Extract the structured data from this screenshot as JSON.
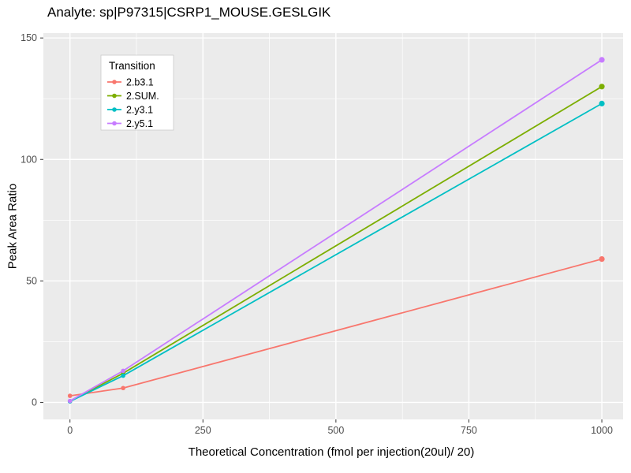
{
  "chart_data": {
    "type": "line",
    "title": "Analyte: sp|P97315|CSRP1_MOUSE.GESLGIK",
    "xlabel": "Theoretical Concentration (fmol per injection(20ul)/ 20)",
    "ylabel": "Peak Area Ratio",
    "legend_title": "Transition",
    "legend_position": "top-left-inside",
    "x": [
      0,
      100,
      1000
    ],
    "series": [
      {
        "name": "2.b3.1",
        "color": "#F8766D",
        "values": [
          2.7,
          5.9,
          59
        ]
      },
      {
        "name": "2.SUM.",
        "color": "#7CAE00",
        "values": [
          0.5,
          12,
          130
        ]
      },
      {
        "name": "2.y3.1",
        "color": "#00BFC4",
        "values": [
          0.4,
          11,
          123
        ]
      },
      {
        "name": "2.y5.1",
        "color": "#C77CFF",
        "values": [
          0.6,
          13,
          141
        ]
      }
    ],
    "x_ticks": [
      0,
      250,
      500,
      750,
      1000
    ],
    "y_ticks": [
      0,
      50,
      100,
      150
    ],
    "x_minor_ticks": [
      125,
      375,
      625,
      875
    ],
    "y_minor_ticks": [
      25,
      75,
      125
    ],
    "xlim": [
      -50,
      1040
    ],
    "ylim": [
      -7,
      152
    ],
    "grid": true,
    "panel_bg": "#EBEBEB",
    "grid_color": "#FFFFFF",
    "tick_label_color": "#4D4D4D",
    "tick_mark_color": "#333333",
    "legend_bg": "#FFFFFF",
    "legend_border": "#CCCCCC",
    "legend_text_color": "#000000"
  }
}
